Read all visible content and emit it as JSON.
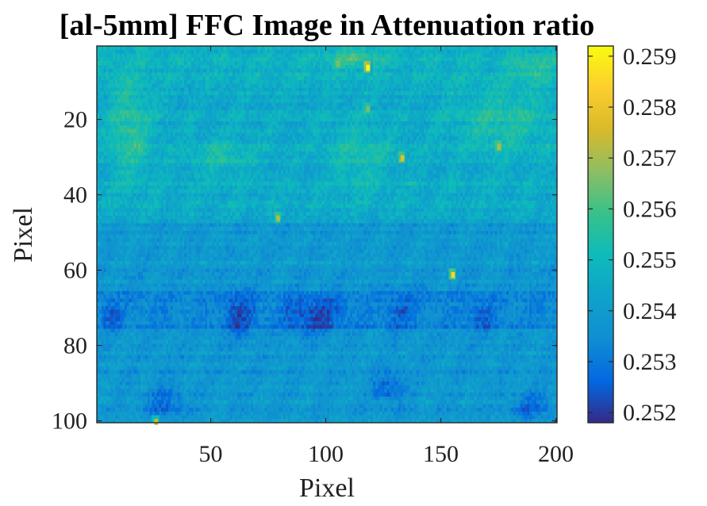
{
  "chart_data": {
    "type": "heatmap",
    "title": "[al-5mm] FFC Image in Attenuation ratio",
    "xlabel": "Pixel",
    "ylabel": "Pixel",
    "xlim": [
      0.5,
      200.5
    ],
    "ylim": [
      0.5,
      100.5
    ],
    "y_direction": "reversed",
    "xticks": [
      50,
      100,
      150,
      200
    ],
    "yticks": [
      20,
      40,
      60,
      80,
      100
    ],
    "grid": false,
    "colormap": "parula",
    "colormap_stops": [
      "#352a87",
      "#0268e1",
      "#108ed2",
      "#0fa2cb",
      "#0dbbbb",
      "#38c18a",
      "#8dbe63",
      "#d8ba2a",
      "#fcce2e",
      "#f9fb0e"
    ],
    "colorbar": {
      "position": "right",
      "clim": [
        0.2518,
        0.2592
      ],
      "ticks": [
        0.252,
        0.253,
        0.254,
        0.255,
        0.256,
        0.257,
        0.258,
        0.259
      ]
    },
    "grid_size": {
      "cols": 200,
      "rows": 100
    },
    "baseline_value": 0.2542,
    "features": {
      "row_bands": [
        {
          "rows": [
            1,
            10
          ],
          "value": 0.2547
        },
        {
          "rows": [
            10,
            45
          ],
          "value": 0.2545
        },
        {
          "rows": [
            48,
            66
          ],
          "value": 0.2539
        },
        {
          "rows": [
            66,
            76
          ],
          "value": 0.2533
        },
        {
          "rows": [
            76,
            100
          ],
          "value": 0.2538
        }
      ],
      "hot_spots": [
        {
          "x": 118,
          "y": 6,
          "value": 0.2592
        },
        {
          "x": 155,
          "y": 61,
          "value": 0.2585
        },
        {
          "x": 133,
          "y": 30,
          "value": 0.2578
        },
        {
          "x": 79,
          "y": 46,
          "value": 0.257
        },
        {
          "x": 175,
          "y": 27,
          "value": 0.257
        },
        {
          "x": 26,
          "y": 100,
          "value": 0.2575
        },
        {
          "x": 118,
          "y": 17,
          "value": 0.2565
        },
        {
          "x": 105,
          "y": 5,
          "value": 0.2565
        }
      ],
      "cold_regions": [
        {
          "x": [
            2,
            12
          ],
          "y": [
            68,
            76
          ],
          "value": 0.2524
        },
        {
          "x": [
            55,
            70
          ],
          "y": [
            66,
            78
          ],
          "value": 0.2522
        },
        {
          "x": [
            80,
            110
          ],
          "y": [
            67,
            77
          ],
          "value": 0.2521
        },
        {
          "x": [
            125,
            140
          ],
          "y": [
            66,
            76
          ],
          "value": 0.2525
        },
        {
          "x": [
            160,
            175
          ],
          "y": [
            68,
            76
          ],
          "value": 0.2526
        },
        {
          "x": [
            20,
            40
          ],
          "y": [
            90,
            100
          ],
          "value": 0.2527
        },
        {
          "x": [
            120,
            135
          ],
          "y": [
            87,
            96
          ],
          "value": 0.2526
        },
        {
          "x": [
            180,
            200
          ],
          "y": [
            92,
            100
          ],
          "value": 0.2527
        }
      ],
      "warm_regions": [
        {
          "x": [
            5,
            25
          ],
          "y": [
            8,
            38
          ],
          "value": 0.2557
        },
        {
          "x": [
            40,
            70
          ],
          "y": [
            25,
            36
          ],
          "value": 0.2553
        },
        {
          "x": [
            100,
            130
          ],
          "y": [
            20,
            40
          ],
          "value": 0.2553
        },
        {
          "x": [
            155,
            200
          ],
          "y": [
            10,
            30
          ],
          "value": 0.2555
        },
        {
          "x": [
            180,
            200
          ],
          "y": [
            2,
            10
          ],
          "value": 0.2556
        },
        {
          "x": [
            100,
            125
          ],
          "y": [
            1,
            6
          ],
          "value": 0.2558
        }
      ]
    }
  }
}
